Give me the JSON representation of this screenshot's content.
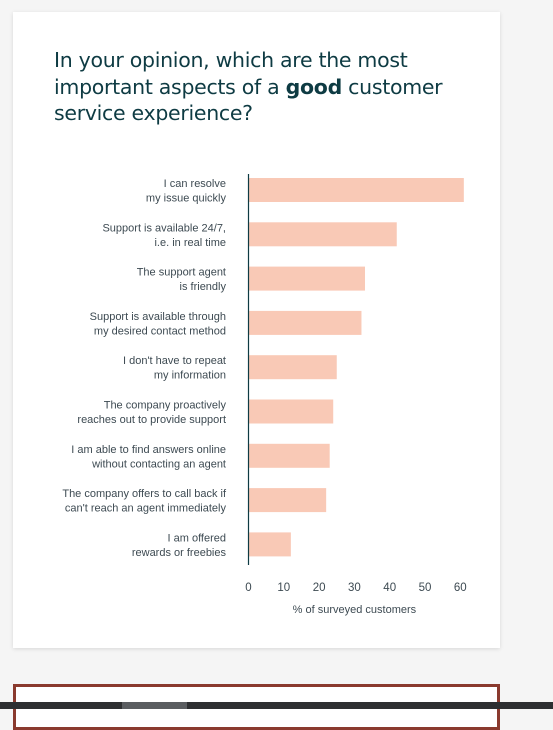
{
  "title": {
    "before": "In your opinion, which are the most important aspects of a ",
    "bold": "good",
    "after": " customer service experience?"
  },
  "chart_data": {
    "type": "bar",
    "orientation": "horizontal",
    "categories": [
      [
        "I can resolve",
        "my issue quickly"
      ],
      [
        "Support is available 24/7,",
        "i.e. in real time"
      ],
      [
        "The support agent",
        "is friendly"
      ],
      [
        "Support is available through",
        "my desired contact method"
      ],
      [
        "I don't have to repeat",
        "my information"
      ],
      [
        "The company proactively",
        "reaches out to provide support"
      ],
      [
        "I am able to find answers online",
        "without contacting an agent"
      ],
      [
        "The company offers to call back if",
        "can't reach an agent immediately"
      ],
      [
        "I am offered",
        "rewards or freebies"
      ]
    ],
    "values": [
      61,
      42,
      33,
      32,
      25,
      24,
      23,
      22,
      12
    ],
    "xlabel": "% of surveyed customers",
    "xticks": [
      0,
      10,
      20,
      30,
      40,
      50,
      60
    ],
    "xlim": [
      0,
      60
    ],
    "grid": false,
    "colors": {
      "bar": "#f9c9b6",
      "axis": "#0e3b43",
      "text": "#3d4a52"
    }
  }
}
